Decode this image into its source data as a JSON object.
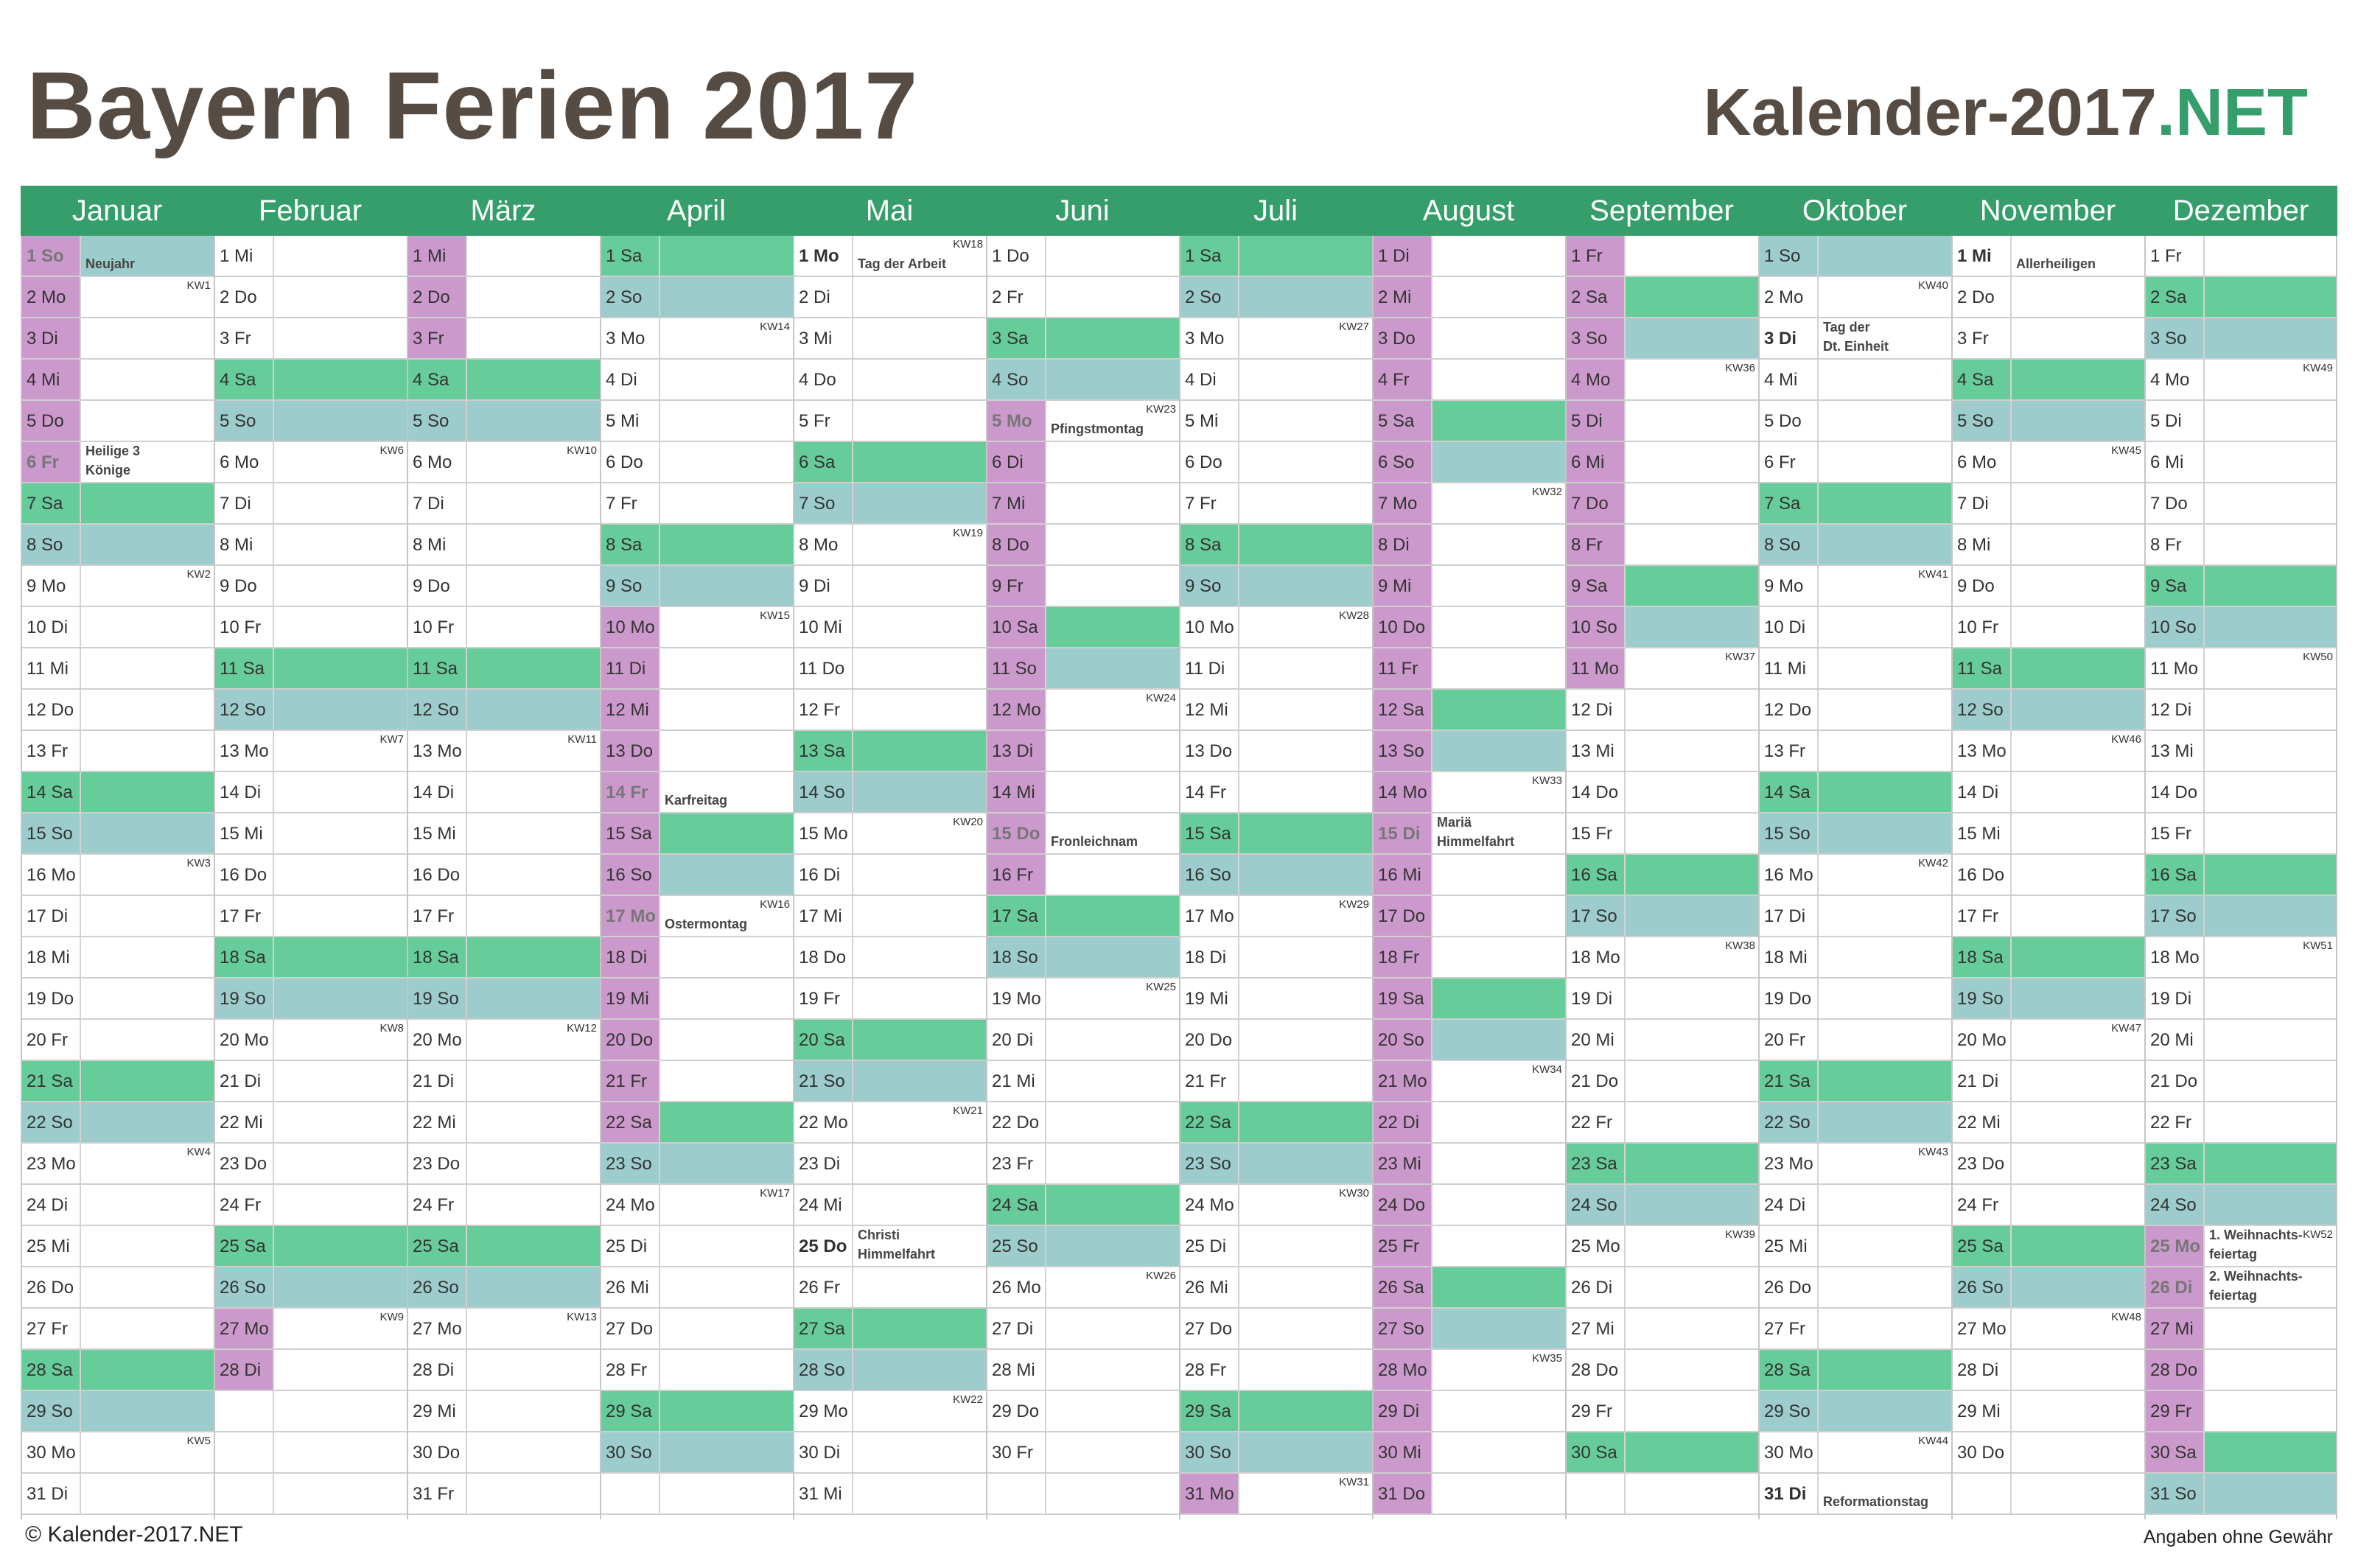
{
  "header": {
    "title": "Bayern Ferien 2017",
    "brand_main": "Kalender-2017",
    "brand_accent": ".NET"
  },
  "colors": {
    "accent": "#359e6b",
    "saturday": "#66cc99",
    "sunday": "#9ccccb",
    "ferien": "#cc99cc",
    "title": "#574c43"
  },
  "months": [
    {
      "name": "Januar",
      "days": 31,
      "startDow": 0,
      "ferien": [
        1,
        2,
        3,
        4,
        5,
        6
      ],
      "feiertage": [
        [
          1,
          "Neujahr"
        ],
        [
          6,
          "Heilige 3 Könige"
        ]
      ]
    },
    {
      "name": "Februar",
      "days": 28,
      "startDow": 3,
      "ferien": [
        27,
        28
      ],
      "feiertage": []
    },
    {
      "name": "März",
      "days": 31,
      "startDow": 3,
      "ferien": [
        1,
        2,
        3
      ],
      "feiertage": []
    },
    {
      "name": "April",
      "days": 30,
      "startDow": 6,
      "ferien": [
        10,
        11,
        12,
        13,
        14,
        15,
        16,
        17,
        18,
        19,
        20,
        21,
        22
      ],
      "feiertage": [
        [
          14,
          "Karfreitag"
        ],
        [
          17,
          "Ostermontag"
        ]
      ]
    },
    {
      "name": "Mai",
      "days": 31,
      "startDow": 1,
      "ferien": [],
      "feiertage": [
        [
          1,
          "Tag der Arbeit"
        ],
        [
          25,
          "Christi Himmelfahrt"
        ]
      ]
    },
    {
      "name": "Juni",
      "days": 30,
      "startDow": 4,
      "ferien": [
        5,
        6,
        7,
        8,
        9,
        10,
        11,
        12,
        13,
        14,
        15,
        16
      ],
      "feiertage": [
        [
          5,
          "Pfingstmontag"
        ],
        [
          15,
          "Fronleichnam"
        ]
      ]
    },
    {
      "name": "Juli",
      "days": 31,
      "startDow": 6,
      "ferien": [
        31
      ],
      "feiertage": []
    },
    {
      "name": "August",
      "days": 31,
      "startDow": 2,
      "ferien": [
        1,
        2,
        3,
        4,
        5,
        6,
        7,
        8,
        9,
        10,
        11,
        12,
        13,
        14,
        15,
        16,
        17,
        18,
        19,
        20,
        21,
        22,
        23,
        24,
        25,
        26,
        27,
        28,
        29,
        30,
        31
      ],
      "feiertage": [
        [
          15,
          "Mariä Himmelfahrt"
        ]
      ]
    },
    {
      "name": "September",
      "days": 30,
      "startDow": 5,
      "ferien": [
        1,
        2,
        3,
        4,
        5,
        6,
        7,
        8,
        9,
        10,
        11
      ],
      "feiertage": []
    },
    {
      "name": "Oktober",
      "days": 31,
      "startDow": 0,
      "ferien": [],
      "feiertage": [
        [
          3,
          "Tag der Dt. Einheit"
        ],
        [
          31,
          "Reformationstag"
        ]
      ]
    },
    {
      "name": "November",
      "days": 30,
      "startDow": 3,
      "ferien": [],
      "feiertage": [
        [
          1,
          "Allerheiligen"
        ]
      ]
    },
    {
      "name": "Dezember",
      "days": 31,
      "startDow": 5,
      "ferien": [
        25,
        26,
        27,
        28,
        29,
        30
      ],
      "feiertage": [
        [
          25,
          "1. Weihnachts- feiertag"
        ],
        [
          26,
          "2. Weihnachts- feiertag"
        ]
      ]
    }
  ],
  "weekday_abbr": [
    "So",
    "Mo",
    "Di",
    "Mi",
    "Do",
    "Fr",
    "Sa"
  ],
  "kw_prefix": "KW",
  "footer": {
    "copyright": "© Kalender-2017.NET",
    "disclaimer": "Angaben ohne Gewähr"
  }
}
